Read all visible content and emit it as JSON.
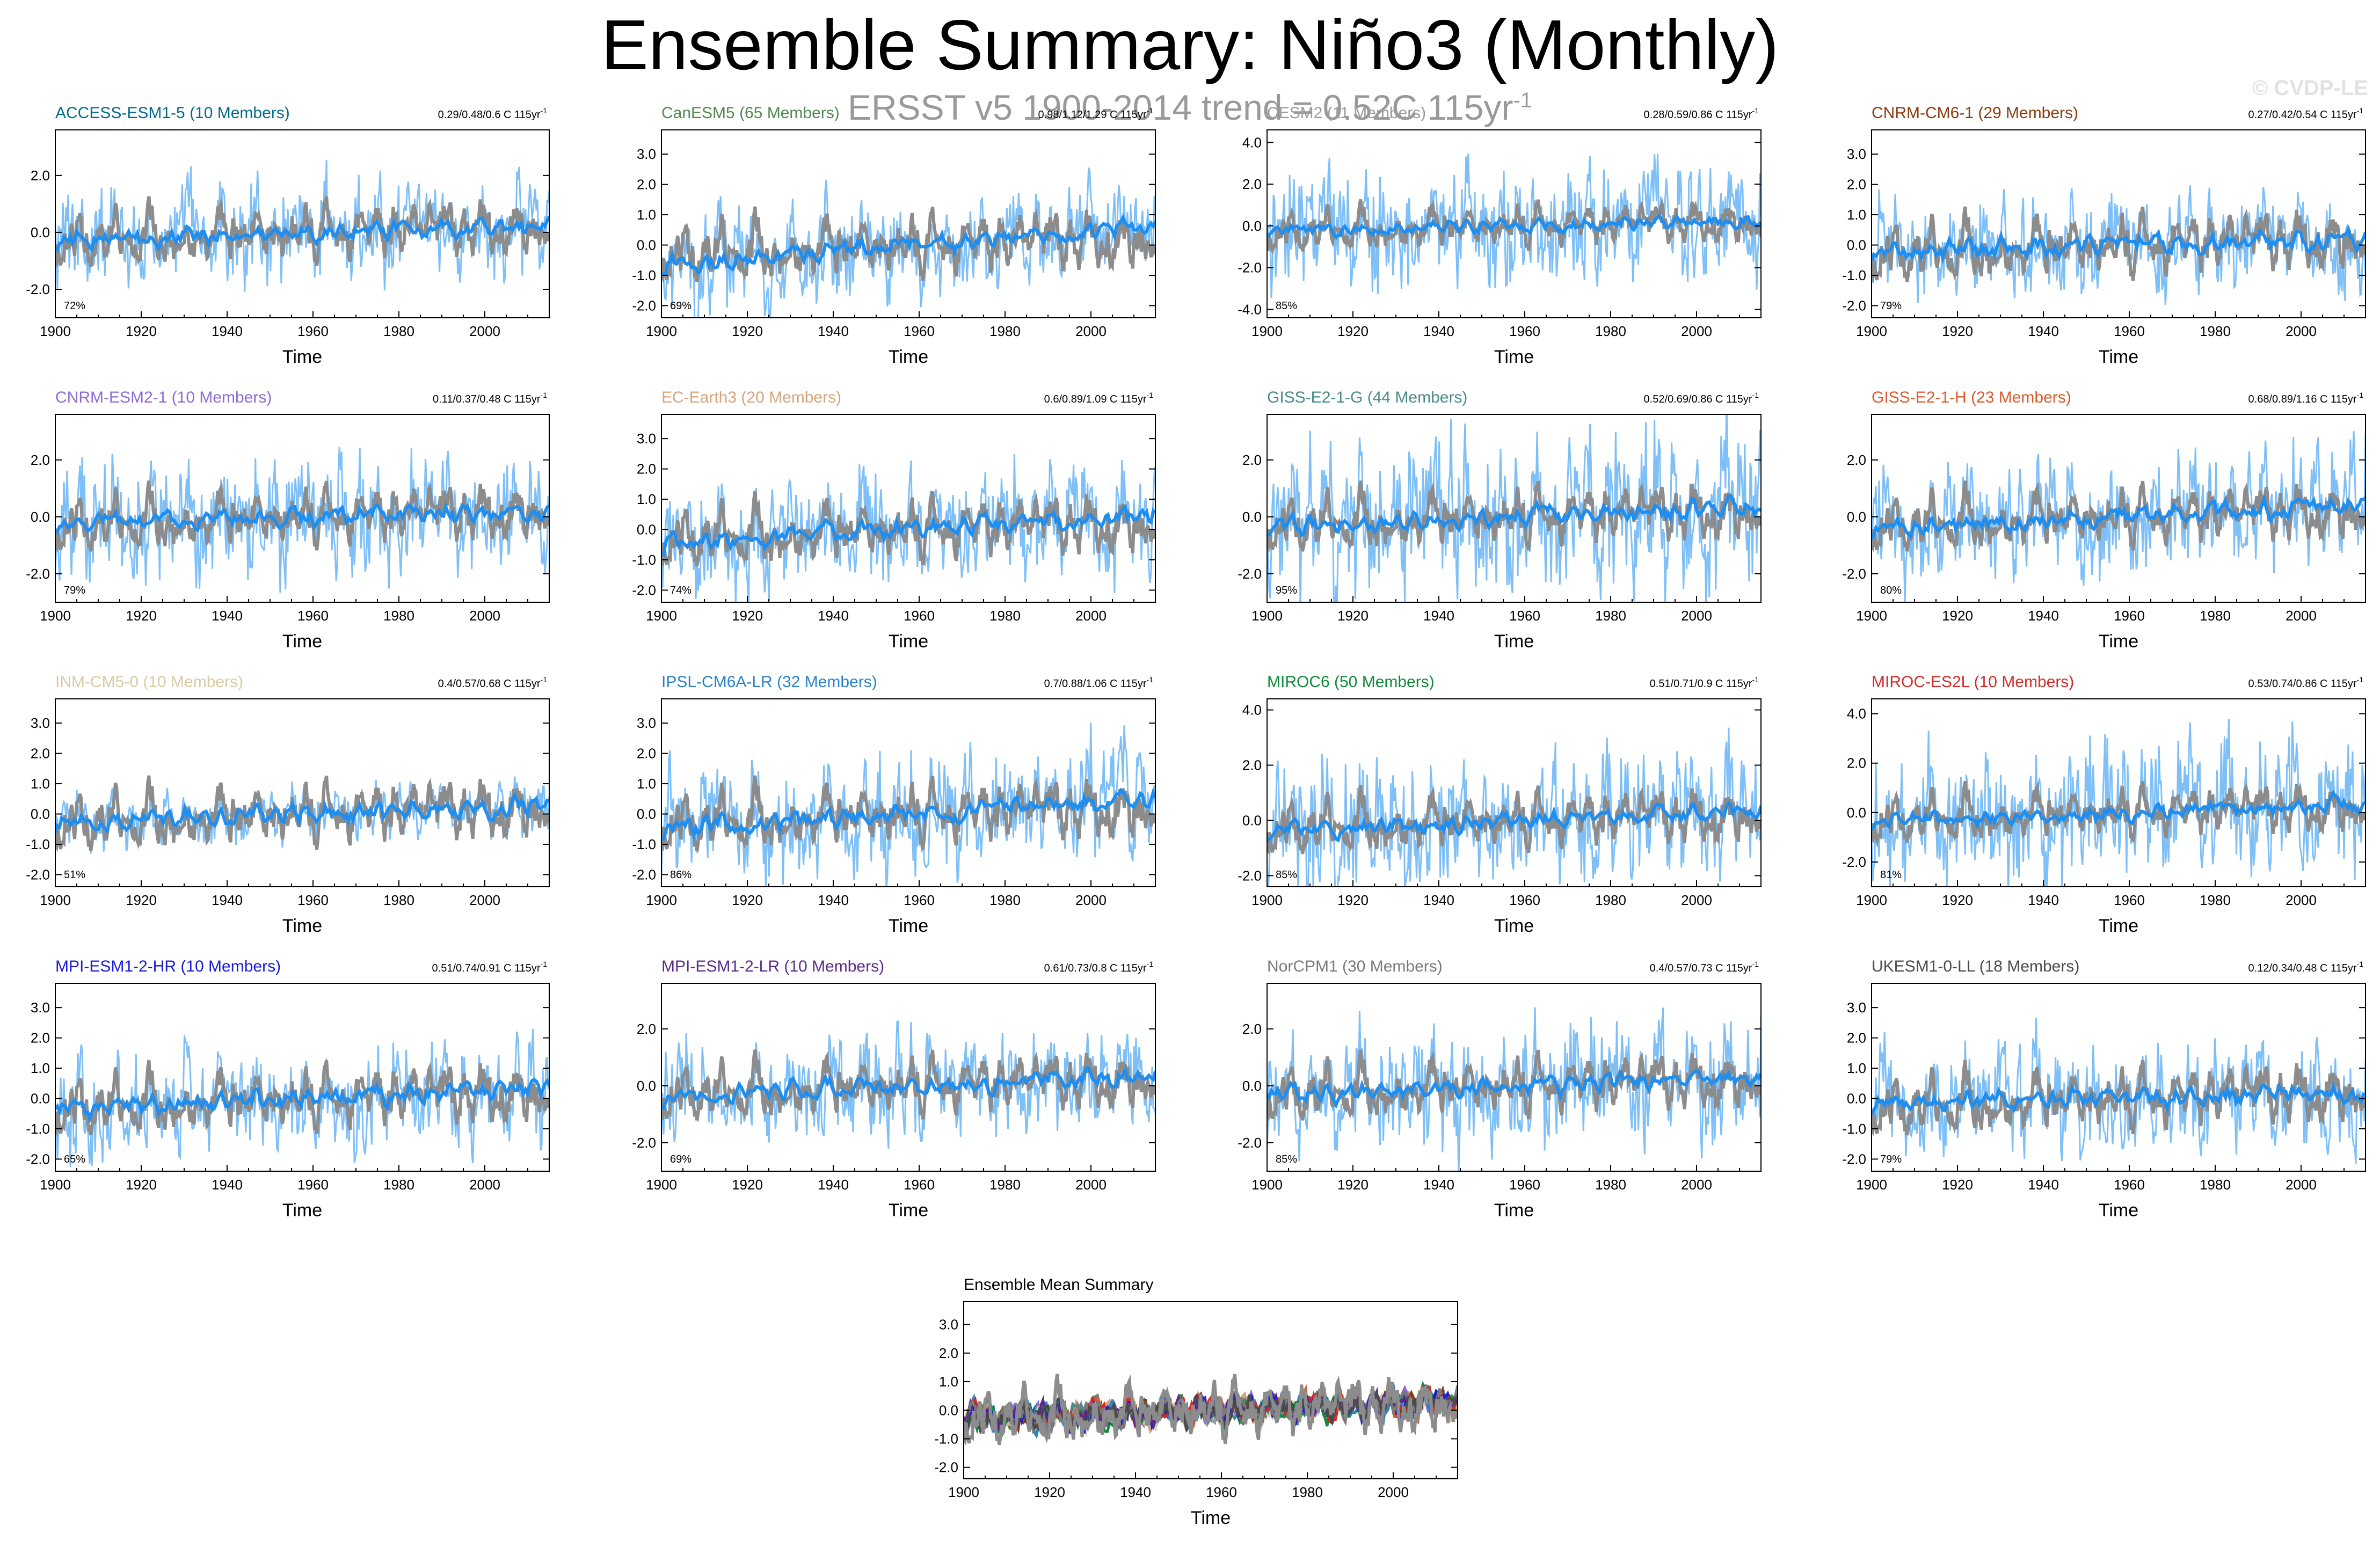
{
  "header": {
    "title": "Ensemble Summary: Niño3 (Monthly)",
    "subtitle_main": "ERSST v5 1900-2014 trend = 0.52C 115yr",
    "subtitle_exp": "-1",
    "watermark": "© CVDP-LE"
  },
  "colors": {
    "observed": "#8c8c8c",
    "member_spread": "#6fb8f5",
    "ensemble_mean": "#1f8ef1"
  },
  "chart_data": [
    {
      "type": "line",
      "title": "ACCESS-ESM1-5 (10 Members)",
      "title_color": "#006b8f",
      "stats": "0.29/0.48/0.6 C 115yr",
      "stats_exp": "-1",
      "pct": "72%",
      "xlabel": "Time",
      "xlim": [
        1900,
        2015
      ],
      "xticks": [
        1900,
        1920,
        1940,
        1960,
        1980,
        2000
      ],
      "ylim": [
        -3.0,
        3.6
      ],
      "yticks": [
        -2.0,
        0.0,
        2.0
      ],
      "spread_amp": 1.0,
      "mean_trend": 0.5,
      "seed": 11
    },
    {
      "type": "line",
      "title": "CanESM5 (65 Members)",
      "title_color": "#4f8a4f",
      "stats": "0.98/1.12/1.29 C 115yr",
      "stats_exp": "-1",
      "pct": "69%",
      "xlabel": "Time",
      "xlim": [
        1900,
        2015
      ],
      "xticks": [
        1900,
        1920,
        1940,
        1960,
        1980,
        2000
      ],
      "ylim": [
        -2.4,
        3.8
      ],
      "yticks": [
        -2.0,
        -1.0,
        0.0,
        1.0,
        2.0,
        3.0
      ],
      "spread_amp": 0.9,
      "mean_trend": 1.4,
      "seed": 12
    },
    {
      "type": "line",
      "title": "CESM2 (11 Members)",
      "title_color": "#9a9a9a",
      "stats": "0.28/0.59/0.86 C 115yr",
      "stats_exp": "-1",
      "pct": "85%",
      "xlabel": "Time",
      "xlim": [
        1900,
        2015
      ],
      "xticks": [
        1900,
        1920,
        1940,
        1960,
        1980,
        2000
      ],
      "ylim": [
        -4.4,
        4.6
      ],
      "yticks": [
        -4.0,
        -2.0,
        0.0,
        2.0,
        4.0
      ],
      "spread_amp": 1.7,
      "mean_trend": 0.5,
      "seed": 13
    },
    {
      "type": "line",
      "title": "CNRM-CM6-1 (29 Members)",
      "title_color": "#8b3a0f",
      "stats": "0.27/0.42/0.54 C 115yr",
      "stats_exp": "-1",
      "pct": "79%",
      "xlabel": "Time",
      "xlim": [
        1900,
        2015
      ],
      "xticks": [
        1900,
        1920,
        1940,
        1960,
        1980,
        2000
      ],
      "ylim": [
        -2.4,
        3.8
      ],
      "yticks": [
        -2.0,
        -1.0,
        0.0,
        1.0,
        2.0,
        3.0
      ],
      "spread_amp": 0.9,
      "mean_trend": 0.4,
      "seed": 14
    },
    {
      "type": "line",
      "title": "CNRM-ESM2-1 (10 Members)",
      "title_color": "#8c6bd6",
      "stats": "0.11/0.37/0.48 C 115yr",
      "stats_exp": "-1",
      "pct": "79%",
      "xlabel": "Time",
      "xlim": [
        1900,
        2015
      ],
      "xticks": [
        1900,
        1920,
        1940,
        1960,
        1980,
        2000
      ],
      "ylim": [
        -3.0,
        3.6
      ],
      "yticks": [
        -2.0,
        0.0,
        2.0
      ],
      "spread_amp": 1.2,
      "mean_trend": 0.3,
      "seed": 15
    },
    {
      "type": "line",
      "title": "EC-Earth3 (20 Members)",
      "title_color": "#d7a37a",
      "stats": "0.6/0.89/1.09 C 115yr",
      "stats_exp": "-1",
      "pct": "74%",
      "xlabel": "Time",
      "xlim": [
        1900,
        2015
      ],
      "xticks": [
        1900,
        1920,
        1940,
        1960,
        1980,
        2000
      ],
      "ylim": [
        -2.4,
        3.8
      ],
      "yticks": [
        -2.0,
        -1.0,
        0.0,
        1.0,
        2.0,
        3.0
      ],
      "spread_amp": 1.0,
      "mean_trend": 0.9,
      "seed": 16
    },
    {
      "type": "line",
      "title": "GISS-E2-1-G (44 Members)",
      "title_color": "#4a8a8a",
      "stats": "0.52/0.69/0.86 C 115yr",
      "stats_exp": "-1",
      "pct": "95%",
      "xlabel": "Time",
      "xlim": [
        1900,
        2015
      ],
      "xticks": [
        1900,
        1920,
        1940,
        1960,
        1980,
        2000
      ],
      "ylim": [
        -3.0,
        3.6
      ],
      "yticks": [
        -2.0,
        0.0,
        2.0
      ],
      "spread_amp": 1.6,
      "mean_trend": 0.7,
      "seed": 17
    },
    {
      "type": "line",
      "title": "GISS-E2-1-H (23 Members)",
      "title_color": "#d95a2b",
      "stats": "0.68/0.89/1.16 C 115yr",
      "stats_exp": "-1",
      "pct": "80%",
      "xlabel": "Time",
      "xlim": [
        1900,
        2015
      ],
      "xticks": [
        1900,
        1920,
        1940,
        1960,
        1980,
        2000
      ],
      "ylim": [
        -3.0,
        3.6
      ],
      "yticks": [
        -2.0,
        0.0,
        2.0
      ],
      "spread_amp": 1.2,
      "mean_trend": 0.9,
      "seed": 18
    },
    {
      "type": "line",
      "title": "INM-CM5-0 (10 Members)",
      "title_color": "#d9caa3",
      "stats": "0.4/0.57/0.68 C 115yr",
      "stats_exp": "-1",
      "pct": "51%",
      "xlabel": "Time",
      "xlim": [
        1900,
        2015
      ],
      "xticks": [
        1900,
        1920,
        1940,
        1960,
        1980,
        2000
      ],
      "ylim": [
        -2.4,
        3.8
      ],
      "yticks": [
        -2.0,
        -1.0,
        0.0,
        1.0,
        2.0,
        3.0
      ],
      "spread_amp": 0.5,
      "mean_trend": 0.6,
      "seed": 19
    },
    {
      "type": "line",
      "title": "IPSL-CM6A-LR (32 Members)",
      "title_color": "#2b82c9",
      "stats": "0.7/0.88/1.06 C 115yr",
      "stats_exp": "-1",
      "pct": "86%",
      "xlabel": "Time",
      "xlim": [
        1900,
        2015
      ],
      "xticks": [
        1900,
        1920,
        1940,
        1960,
        1980,
        2000
      ],
      "ylim": [
        -2.4,
        3.8
      ],
      "yticks": [
        -2.0,
        -1.0,
        0.0,
        1.0,
        2.0,
        3.0
      ],
      "spread_amp": 1.1,
      "mean_trend": 0.9,
      "seed": 20
    },
    {
      "type": "line",
      "title": "MIROC6 (50 Members)",
      "title_color": "#0f8a3a",
      "stats": "0.51/0.71/0.9 C 115yr",
      "stats_exp": "-1",
      "pct": "85%",
      "xlabel": "Time",
      "xlim": [
        1900,
        2015
      ],
      "xticks": [
        1900,
        1920,
        1940,
        1960,
        1980,
        2000
      ],
      "ylim": [
        -2.4,
        4.4
      ],
      "yticks": [
        -2.0,
        0.0,
        2.0,
        4.0
      ],
      "spread_amp": 1.4,
      "mean_trend": 0.7,
      "seed": 21
    },
    {
      "type": "line",
      "title": "MIROC-ES2L (10 Members)",
      "title_color": "#d62a2a",
      "stats": "0.53/0.74/0.86 C 115yr",
      "stats_exp": "-1",
      "pct": "81%",
      "xlabel": "Time",
      "xlim": [
        1900,
        2015
      ],
      "xticks": [
        1900,
        1920,
        1940,
        1960,
        1980,
        2000
      ],
      "ylim": [
        -3.0,
        4.6
      ],
      "yticks": [
        -2.0,
        0.0,
        2.0,
        4.0
      ],
      "spread_amp": 1.7,
      "mean_trend": 0.7,
      "seed": 22
    },
    {
      "type": "line",
      "title": "MPI-ESM1-2-HR (10 Members)",
      "title_color": "#1a1ad9",
      "stats": "0.51/0.74/0.91 C 115yr",
      "stats_exp": "-1",
      "pct": "65%",
      "xlabel": "Time",
      "xlim": [
        1900,
        2015
      ],
      "xticks": [
        1900,
        1920,
        1940,
        1960,
        1980,
        2000
      ],
      "ylim": [
        -2.4,
        3.8
      ],
      "yticks": [
        -2.0,
        -1.0,
        0.0,
        1.0,
        2.0,
        3.0
      ],
      "spread_amp": 0.9,
      "mean_trend": 0.7,
      "seed": 23
    },
    {
      "type": "line",
      "title": "MPI-ESM1-2-LR (10 Members)",
      "title_color": "#5a2a8a",
      "stats": "0.61/0.73/0.8 C 115yr",
      "stats_exp": "-1",
      "pct": "69%",
      "xlabel": "Time",
      "xlim": [
        1900,
        2015
      ],
      "xticks": [
        1900,
        1920,
        1940,
        1960,
        1980,
        2000
      ],
      "ylim": [
        -3.0,
        3.6
      ],
      "yticks": [
        -2.0,
        0.0,
        2.0
      ],
      "spread_amp": 1.0,
      "mean_trend": 0.7,
      "seed": 24
    },
    {
      "type": "line",
      "title": "NorCPM1 (30 Members)",
      "title_color": "#7a7a7a",
      "stats": "0.4/0.57/0.73 C 115yr",
      "stats_exp": "-1",
      "pct": "85%",
      "xlabel": "Time",
      "xlim": [
        1900,
        2015
      ],
      "xticks": [
        1900,
        1920,
        1940,
        1960,
        1980,
        2000
      ],
      "ylim": [
        -3.0,
        3.6
      ],
      "yticks": [
        -2.0,
        0.0,
        2.0
      ],
      "spread_amp": 1.2,
      "mean_trend": 0.6,
      "seed": 25
    },
    {
      "type": "line",
      "title": "UKESM1-0-LL (18 Members)",
      "title_color": "#4a4a4a",
      "stats": "0.12/0.34/0.48 C 115yr",
      "stats_exp": "-1",
      "pct": "79%",
      "xlabel": "Time",
      "xlim": [
        1900,
        2015
      ],
      "xticks": [
        1900,
        1920,
        1940,
        1960,
        1980,
        2000
      ],
      "ylim": [
        -2.4,
        3.8
      ],
      "yticks": [
        -2.0,
        -1.0,
        0.0,
        1.0,
        2.0,
        3.0
      ],
      "spread_amp": 1.0,
      "mean_trend": 0.3,
      "seed": 26
    },
    {
      "type": "line",
      "summary": true,
      "title": "Ensemble Mean Summary",
      "title_color": "#000000",
      "xlabel": "Time",
      "xlim": [
        1900,
        2015
      ],
      "xticks": [
        1900,
        1920,
        1940,
        1960,
        1980,
        2000
      ],
      "ylim": [
        -2.4,
        3.8
      ],
      "yticks": [
        -2.0,
        -1.0,
        0.0,
        1.0,
        2.0,
        3.0
      ],
      "seed": 99,
      "series_colors": [
        "#006b8f",
        "#4f8a4f",
        "#9a9a9a",
        "#8b3a0f",
        "#8c6bd6",
        "#d7a37a",
        "#4a8a8a",
        "#d95a2b",
        "#d9caa3",
        "#2b82c9",
        "#0f8a3a",
        "#d62a2a",
        "#1a1ad9",
        "#5a2a8a",
        "#7a7a7a",
        "#4a4a4a"
      ]
    }
  ]
}
